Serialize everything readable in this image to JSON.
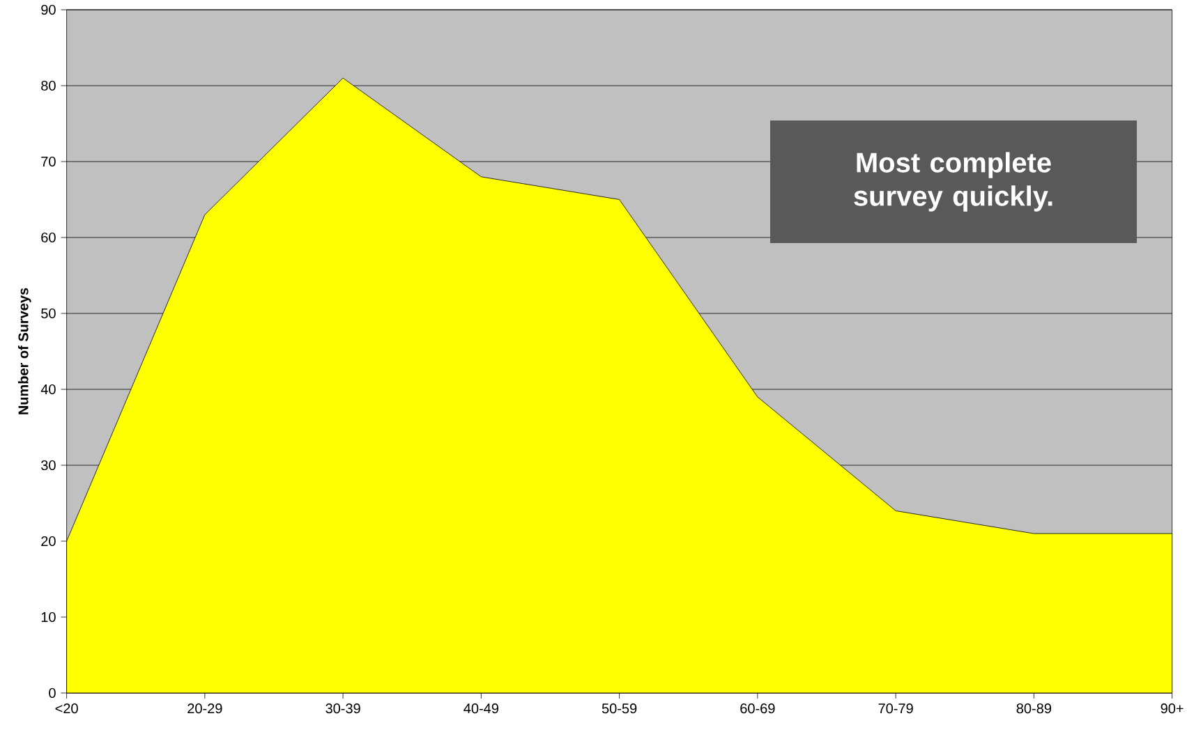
{
  "chart_data": {
    "type": "area",
    "ylabel": "Number of Surveys",
    "categories": [
      "<20",
      "20-29",
      "30-39",
      "40-49",
      "50-59",
      "60-69",
      "70-79",
      "80-89",
      "90+"
    ],
    "values": [
      20,
      63,
      81,
      68,
      65,
      39,
      24,
      21,
      21
    ],
    "color": "#ffff00",
    "ylim": [
      0,
      90
    ],
    "yticks": [
      0,
      10,
      20,
      30,
      40,
      50,
      60,
      70,
      80,
      90
    ],
    "grid": "y",
    "annotations": [
      "Most complete survey quickly."
    ]
  }
}
